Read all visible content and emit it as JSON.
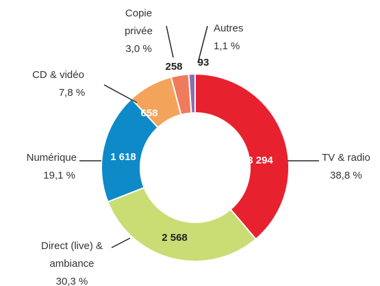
{
  "chart_data": {
    "type": "donut",
    "categories": [
      "TV & radio",
      "Direct (live) & ambiance",
      "Numérique",
      "CD & vidéo",
      "Copie privée",
      "Autres"
    ],
    "values": [
      3294,
      2568,
      1618,
      658,
      258,
      93
    ],
    "value_labels": [
      "3 294",
      "2 568",
      "1 618",
      "658",
      "258",
      "93"
    ],
    "percent_labels": [
      "38,8 %",
      "30,3 %",
      "19,1 %",
      "7,8 %",
      "3,0 %",
      "1,1 %"
    ],
    "colors": [
      "#e8212e",
      "#c9dd74",
      "#0e8ac8",
      "#f3a35a",
      "#ef7b5d",
      "#8a6fb0"
    ]
  }
}
